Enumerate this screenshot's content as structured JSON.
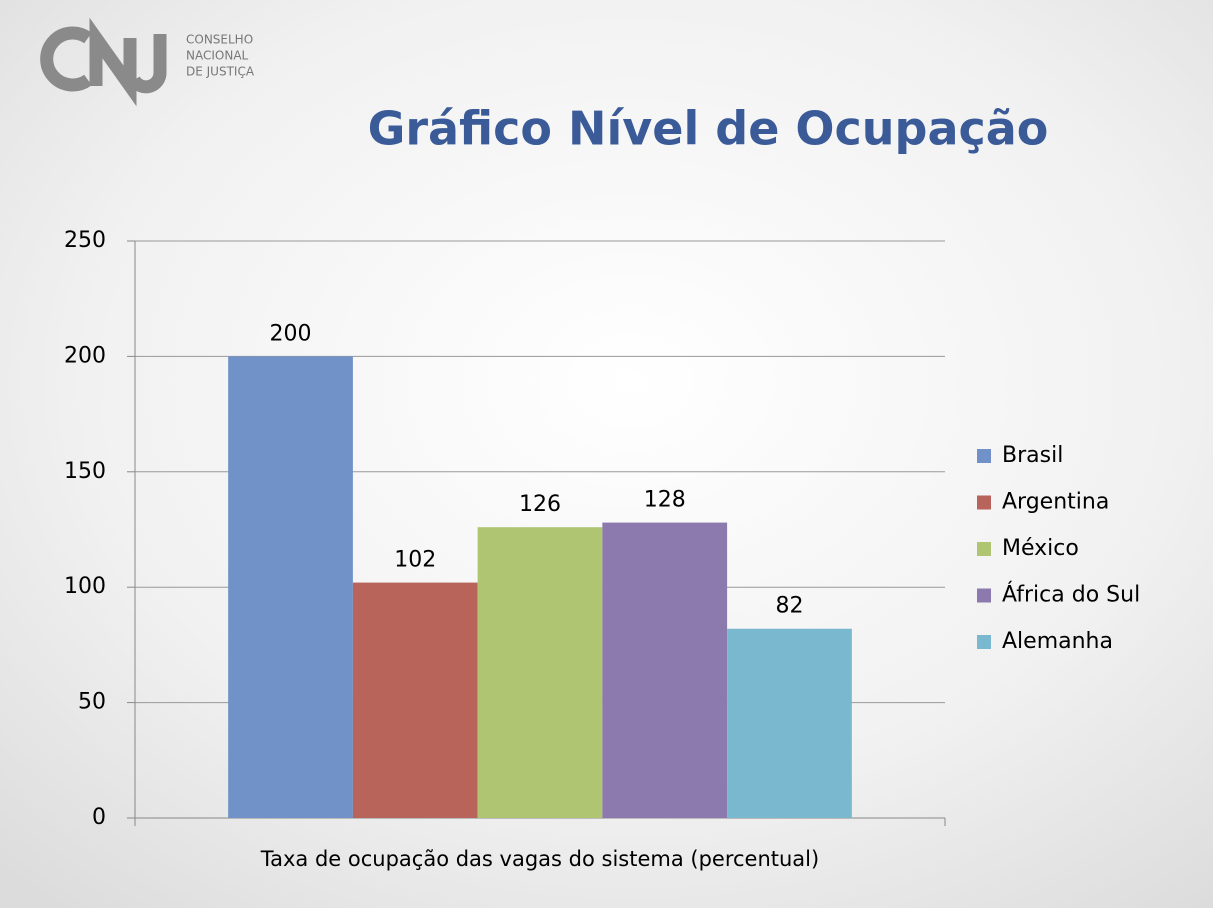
{
  "logo": {
    "lines": [
      "CONSELHO",
      "NACIONAL",
      "DE JUSTIÇA"
    ]
  },
  "chart_data": {
    "type": "bar",
    "title": "Gráfico Nível de Ocupação",
    "categories": [
      "Taxa de ocupação das vagas do sistema (percentual)"
    ],
    "series": [
      {
        "name": "Brasil",
        "color": "#7092c8",
        "values": [
          200
        ]
      },
      {
        "name": "Argentina",
        "color": "#b9645a",
        "values": [
          102
        ]
      },
      {
        "name": "México",
        "color": "#afc572",
        "values": [
          126
        ]
      },
      {
        "name": "África do Sul",
        "color": "#8c7aae",
        "values": [
          128
        ]
      },
      {
        "name": "Alemanha",
        "color": "#7ab8cf",
        "values": [
          82
        ]
      }
    ],
    "ylim": [
      0,
      250
    ],
    "yticks": [
      0,
      50,
      100,
      150,
      200,
      250
    ],
    "grid": true,
    "legend": "right",
    "data_labels": true
  }
}
